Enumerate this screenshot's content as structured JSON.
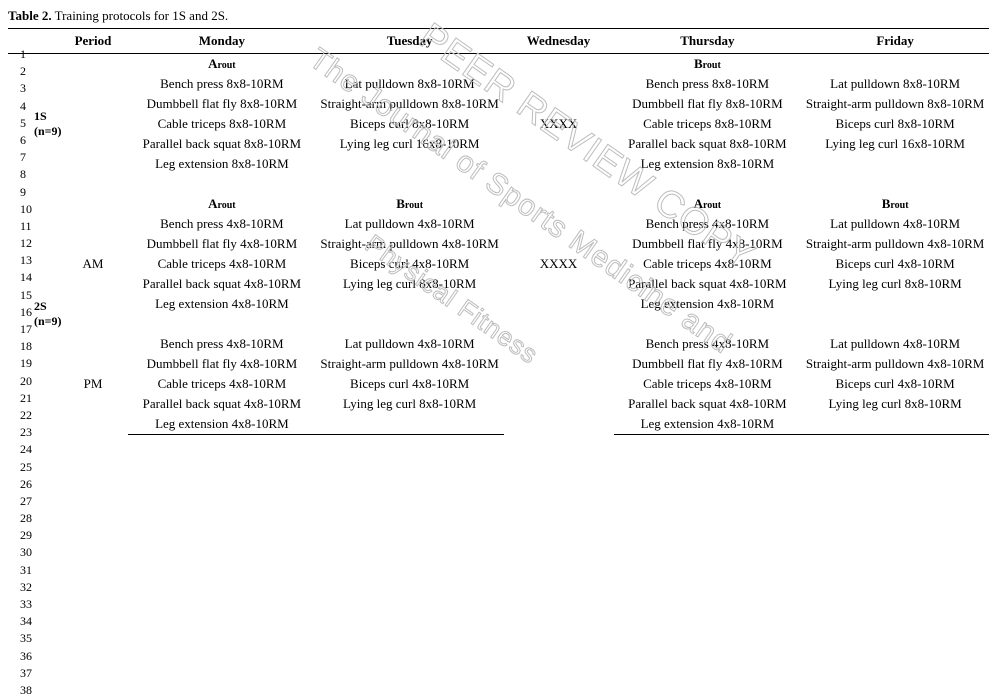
{
  "caption_bold": "Table 2.",
  "caption_rest": " Training protocols for 1S and 2S.",
  "line_numbers": [
    1,
    2,
    3,
    4,
    5,
    6,
    7,
    8,
    9,
    10,
    11,
    12,
    13,
    14,
    15,
    16,
    17,
    18,
    19,
    20,
    21,
    22,
    23,
    24,
    25,
    26,
    27,
    28,
    29,
    30,
    31,
    32,
    33,
    34,
    35,
    36,
    37,
    38
  ],
  "headers": [
    "",
    "Period",
    "Monday",
    "Tuesday",
    "Wednesday",
    "Thursday",
    "Friday"
  ],
  "watermark_l1": "PEER REVIEW COPY",
  "watermark_l2": "The Journal of Sports Medicine and",
  "watermark_l3": "Physical Fitness",
  "groups": {
    "g1": {
      "label": "1S",
      "sub": "(n=9)"
    },
    "g2": {
      "label": "2S",
      "sub": "(n=9)"
    }
  },
  "periods": {
    "am": "AM",
    "pm": "PM"
  },
  "rout_a": "A",
  "rout_b": "B",
  "rout_suffix": "rout",
  "wed_x": "XXXX",
  "s1": {
    "mon": [
      "Bench press 8x8-10RM",
      "Dumbbell flat fly 8x8-10RM",
      "Cable triceps 8x8-10RM",
      "Parallel back squat 8x8-10RM",
      "Leg extension 8x8-10RM"
    ],
    "tue": [
      "Lat pulldown 8x8-10RM",
      "Straight-arm pulldown 8x8-10RM",
      "Biceps curl 8x8-10RM",
      "Lying leg curl 16x8-10RM"
    ],
    "thu": [
      "Bench press 8x8-10RM",
      "Dumbbell flat fly 8x8-10RM",
      "Cable triceps 8x8-10RM",
      "Parallel back squat 8x8-10RM",
      "Leg extension 8x8-10RM"
    ],
    "fri": [
      "Lat pulldown 8x8-10RM",
      "Straight-arm pulldown 8x8-10RM",
      "Biceps curl 8x8-10RM",
      "Lying leg curl 16x8-10RM"
    ]
  },
  "s2am": {
    "mon": [
      "Bench press 4x8-10RM",
      "Dumbbell flat fly 4x8-10RM",
      "Cable triceps 4x8-10RM",
      "Parallel back squat 4x8-10RM",
      "Leg extension 4x8-10RM"
    ],
    "tue": [
      "Lat pulldown 4x8-10RM",
      "Straight-arm pulldown 4x8-10RM",
      "Biceps curl 4x8-10RM",
      "Lying leg curl 8x8-10RM"
    ],
    "thu": [
      "Bench press 4x8-10RM",
      "Dumbbell flat fly 4x8-10RM",
      "Cable triceps 4x8-10RM",
      "Parallel back squat 4x8-10RM",
      "Leg extension 4x8-10RM"
    ],
    "fri": [
      "Lat pulldown 4x8-10RM",
      "Straight-arm pulldown 4x8-10RM",
      "Biceps curl 4x8-10RM",
      "Lying leg curl 8x8-10RM"
    ]
  },
  "s2pm": {
    "mon": [
      "Bench press 4x8-10RM",
      "Dumbbell flat fly 4x8-10RM",
      "Cable triceps 4x8-10RM",
      "Parallel back squat 4x8-10RM",
      "Leg extension 4x8-10RM"
    ],
    "tue": [
      "Lat pulldown 4x8-10RM",
      "Straight-arm pulldown 4x8-10RM",
      "Biceps curl 4x8-10RM",
      "Lying leg curl 8x8-10RM"
    ],
    "thu": [
      "Bench press 4x8-10RM",
      "Dumbbell flat fly 4x8-10RM",
      "Cable triceps 4x8-10RM",
      "Parallel back squat 4x8-10RM",
      "Leg extension 4x8-10RM"
    ],
    "fri": [
      "Lat pulldown 4x8-10RM",
      "Straight-arm pulldown 4x8-10RM",
      "Biceps curl 4x8-10RM",
      "Lying leg curl 8x8-10RM"
    ]
  }
}
